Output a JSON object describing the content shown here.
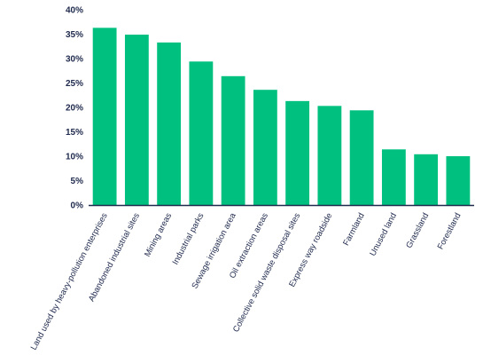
{
  "chart_data": {
    "type": "bar",
    "title": "",
    "xlabel": "",
    "ylabel": "",
    "ylim": [
      0,
      40
    ],
    "yticks": [
      "0%",
      "5%",
      "10%",
      "15%",
      "20%",
      "25%",
      "30%",
      "35%",
      "40%"
    ],
    "grid": false,
    "bar_color": "#00c07f",
    "axis_color": "#1f2a4d",
    "categories": [
      "Land used by heavy-pollution enterprises",
      "Abandoned industrial sites",
      "Mining areas",
      "Industrial parks",
      "Sewage irrigation area",
      "Oil extraction areas",
      "Collective solid waste disposal sites",
      "Express way roadside",
      "Farmland",
      "Unused land",
      "Grassland",
      "Forestland"
    ],
    "values": [
      36.3,
      34.9,
      33.3,
      29.4,
      26.4,
      23.6,
      21.3,
      20.3,
      19.4,
      11.4,
      10.4,
      10.0
    ]
  }
}
